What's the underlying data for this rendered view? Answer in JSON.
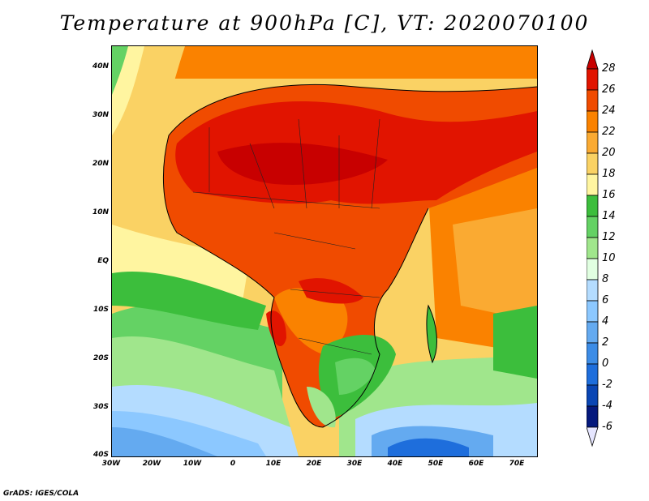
{
  "title": "Temperature at 900hPa [C], VT: 2020070100",
  "credit": "GrADS: IGES/COLA",
  "map": {
    "lat_ticks": [
      "40N",
      "30N",
      "20N",
      "10N",
      "EQ",
      "10S",
      "20S",
      "30S",
      "40S"
    ],
    "lon_ticks": [
      "30W",
      "20W",
      "10W",
      "0",
      "10E",
      "20E",
      "30E",
      "40E",
      "50E",
      "60E",
      "70E"
    ]
  },
  "colorbar": {
    "labels": [
      "28",
      "26",
      "24",
      "22",
      "20",
      "18",
      "16",
      "14",
      "12",
      "10",
      "8",
      "6",
      "4",
      "2",
      "0",
      "-2",
      "-4",
      "-6"
    ],
    "colors": [
      "#c80000",
      "#e11400",
      "#f04b00",
      "#fa8200",
      "#faaa32",
      "#fad264",
      "#fff5a0",
      "#3cbe3c",
      "#64d264",
      "#a0e68c",
      "#e1ffe1",
      "#b4dcff",
      "#8cc8ff",
      "#64aaf0",
      "#3c8ce6",
      "#1e6edc",
      "#0a46b4",
      "#05197d",
      "#e6e6ff"
    ]
  }
}
